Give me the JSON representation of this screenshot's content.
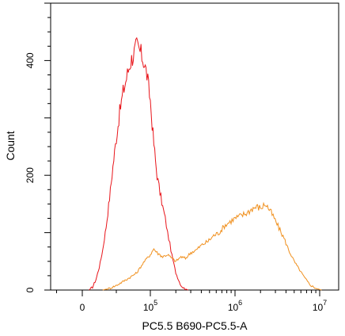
{
  "chart_data": {
    "type": "line",
    "xlabel": "PC5.5 B690-PC5.5-A",
    "ylabel": "Count",
    "x_scale": "biexponential",
    "x_ticks": [
      {
        "value": 0,
        "label": "0",
        "exp": ""
      },
      {
        "value": 100000,
        "label": "10",
        "exp": "5"
      },
      {
        "value": 1000000,
        "label": "10",
        "exp": "6"
      },
      {
        "value": 10000000,
        "label": "10",
        "exp": "7"
      }
    ],
    "y_ticks": [
      {
        "value": 0,
        "label": "0"
      },
      {
        "value": 200,
        "label": "200"
      },
      {
        "value": 400,
        "label": "400"
      }
    ],
    "ylim": [
      0,
      500
    ],
    "grid": false,
    "series": [
      {
        "color": "#e8141a",
        "points": [
          [
            10000,
            0
          ],
          [
            15000,
            5
          ],
          [
            20000,
            18
          ],
          [
            25000,
            40
          ],
          [
            30000,
            70
          ],
          [
            35000,
            110
          ],
          [
            40000,
            160
          ],
          [
            45000,
            215
          ],
          [
            50000,
            265
          ],
          [
            55000,
            310
          ],
          [
            60000,
            345
          ],
          [
            65000,
            370
          ],
          [
            70000,
            395
          ],
          [
            75000,
            410
          ],
          [
            80000,
            425
          ],
          [
            85000,
            415
          ],
          [
            90000,
            400
          ],
          [
            95000,
            375
          ],
          [
            100000,
            330
          ],
          [
            105000,
            290
          ],
          [
            110000,
            255
          ],
          [
            115000,
            225
          ],
          [
            120000,
            200
          ],
          [
            130000,
            170
          ],
          [
            140000,
            145
          ],
          [
            150000,
            125
          ],
          [
            160000,
            100
          ],
          [
            170000,
            80
          ],
          [
            180000,
            60
          ],
          [
            190000,
            45
          ],
          [
            200000,
            30
          ],
          [
            215000,
            18
          ],
          [
            230000,
            8
          ],
          [
            250000,
            3
          ],
          [
            280000,
            0
          ]
        ]
      },
      {
        "color": "#f0901e",
        "points": [
          [
            30000,
            0
          ],
          [
            40000,
            3
          ],
          [
            50000,
            8
          ],
          [
            60000,
            15
          ],
          [
            70000,
            22
          ],
          [
            80000,
            30
          ],
          [
            90000,
            48
          ],
          [
            100000,
            62
          ],
          [
            110000,
            72
          ],
          [
            120000,
            65
          ],
          [
            140000,
            58
          ],
          [
            160000,
            62
          ],
          [
            180000,
            55
          ],
          [
            200000,
            50
          ],
          [
            230000,
            58
          ],
          [
            260000,
            55
          ],
          [
            300000,
            65
          ],
          [
            350000,
            70
          ],
          [
            400000,
            78
          ],
          [
            480000,
            85
          ],
          [
            560000,
            95
          ],
          [
            650000,
            100
          ],
          [
            750000,
            112
          ],
          [
            850000,
            118
          ],
          [
            1000000,
            125
          ],
          [
            1200000,
            130
          ],
          [
            1400000,
            135
          ],
          [
            1600000,
            142
          ],
          [
            1800000,
            145
          ],
          [
            2000000,
            143
          ],
          [
            2300000,
            150
          ],
          [
            2600000,
            138
          ],
          [
            2900000,
            125
          ],
          [
            3300000,
            108
          ],
          [
            3800000,
            90
          ],
          [
            4300000,
            70
          ],
          [
            5000000,
            50
          ],
          [
            5800000,
            35
          ],
          [
            6600000,
            22
          ],
          [
            7600000,
            10
          ],
          [
            8500000,
            5
          ],
          [
            9500000,
            2
          ],
          [
            10500000,
            0
          ]
        ]
      }
    ]
  }
}
